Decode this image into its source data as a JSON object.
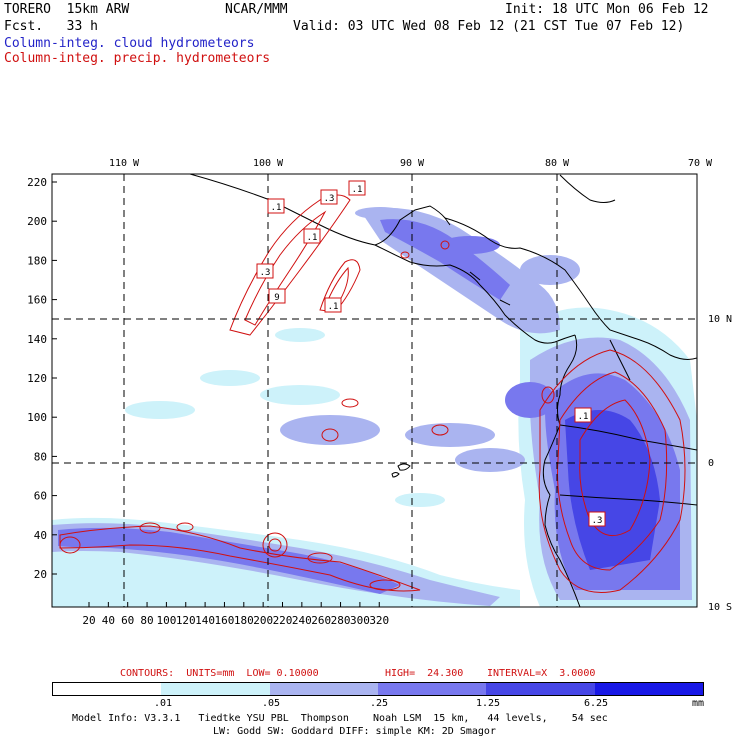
{
  "header": {
    "model": "TORERO  15km ARW",
    "org": "NCAR/MMM",
    "init": "Init: 18 UTC Mon 06 Feb 12",
    "fcst": "Fcst.   33 h",
    "valid": "Valid: 03 UTC Wed 08 Feb 12 (21 CST Tue 07 Feb 12)",
    "field1": "Column-integ. cloud hydrometeors",
    "field2": "Column-integ. precip. hydrometeors"
  },
  "map": {
    "lon_labels": [
      "110 W",
      "100 W",
      "90 W",
      "80 W",
      "70 W"
    ],
    "lat_labels": [
      "10 N",
      "0",
      "10 S"
    ],
    "y_ticks": [
      "220",
      "200",
      "180",
      "160",
      "140",
      "120",
      "100",
      "80",
      "60",
      "40",
      "20"
    ],
    "x_ticks": [
      "20",
      "40",
      "60",
      "80",
      "100",
      "120",
      "140",
      "160",
      "180",
      "200",
      "220",
      "240",
      "260",
      "280",
      "300",
      "320"
    ],
    "contour_labels": [
      ".1",
      ".3",
      ".1",
      ".1",
      ".3",
      "9",
      ".1",
      ".1",
      ".3"
    ]
  },
  "contour_info": {
    "contours": "CONTOURS:  UNITS=mm  LOW= 0.10000",
    "high": "HIGH=  24.300",
    "interval": "INTERVAL=X  3.0000"
  },
  "legend": {
    "labels": [
      ".01",
      ".05",
      ".25",
      "1.25",
      "6.25"
    ],
    "units": "mm",
    "colors": [
      "#ffffff",
      "#cdf2fa",
      "#aab4f0",
      "#7878ee",
      "#4646e6",
      "#1818e6"
    ]
  },
  "footer": {
    "line1": "Model Info: V3.3.1   Tiedtke YSU PBL  Thompson    Noah LSM  15 km,   44 levels,    54 sec",
    "line2": "LW: Godd SW: Goddard DIFF: simple KM: 2D Smagor"
  },
  "colors": {
    "cloud": "#2323c8",
    "precip": "#d01010"
  }
}
